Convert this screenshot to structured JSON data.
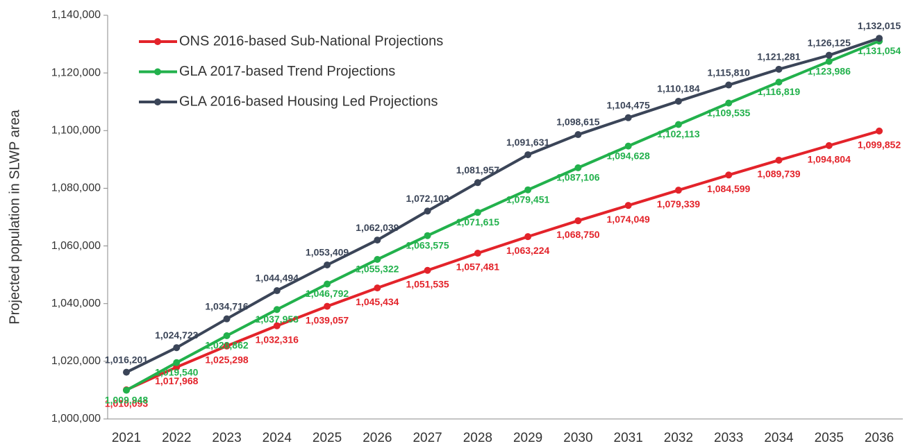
{
  "chart_data": {
    "type": "line",
    "y_label": "Projected population in SLWP area",
    "categories": [
      "2021",
      "2022",
      "2023",
      "2024",
      "2025",
      "2026",
      "2027",
      "2028",
      "2029",
      "2030",
      "2031",
      "2032",
      "2033",
      "2034",
      "2035",
      "2036"
    ],
    "series": [
      {
        "name": "ONS 2016-based Sub-National Projections",
        "color": "#e3232a",
        "values": [
          1010093,
          1017968,
          1025298,
          1032316,
          1039057,
          1045434,
          1051535,
          1057481,
          1063224,
          1068750,
          1074049,
          1079339,
          1084599,
          1089739,
          1094804,
          1099852
        ],
        "value_labels": [
          "1,010,093",
          "1,017,968",
          "1,025,298",
          "1,032,316",
          "1,039,057",
          "1,045,434",
          "1,051,535",
          "1,057,481",
          "1,063,224",
          "1,068,750",
          "1,074,049",
          "1,079,339",
          "1,084,599",
          "1,089,739",
          "1,094,804",
          "1,099,852"
        ]
      },
      {
        "name": "GLA 2017-based Trend Projections",
        "color": "#22b14c",
        "values": [
          1009948,
          1019540,
          1028862,
          1037953,
          1046792,
          1055322,
          1063575,
          1071615,
          1079451,
          1087106,
          1094628,
          1102113,
          1109535,
          1116819,
          1123986,
          1131054
        ],
        "value_labels": [
          "1,009,948",
          "1,019,540",
          "1,028,862",
          "1,037,953",
          "1,046,792",
          "1,055,322",
          "1,063,575",
          "1,071,615",
          "1,079,451",
          "1,087,106",
          "1,094,628",
          "1,102,113",
          "1,109,535",
          "1,116,819",
          "1,123,986",
          "1,131,054"
        ]
      },
      {
        "name": "GLA 2016-based Housing Led Projections",
        "color": "#3b4558",
        "values": [
          1016201,
          1024723,
          1034716,
          1044494,
          1053409,
          1062039,
          1072102,
          1081957,
          1091631,
          1098615,
          1104475,
          1110184,
          1115810,
          1121281,
          1126125,
          1132015
        ],
        "value_labels": [
          "1,016,201",
          "1,024,723",
          "1,034,716",
          "1,044,494",
          "1,053,409",
          "1,062,039",
          "1,072,102",
          "1,081,957",
          "1,091,631",
          "1,098,615",
          "1,104,475",
          "1,110,184",
          "1,115,810",
          "1,121,281",
          "1,126,125",
          "1,132,015"
        ]
      }
    ],
    "ylim": [
      1000000,
      1140000
    ],
    "yticks": [
      {
        "value": 1000000,
        "label": "1,000,000"
      },
      {
        "value": 1020000,
        "label": "1,020,000"
      },
      {
        "value": 1040000,
        "label": "1,040,000"
      },
      {
        "value": 1060000,
        "label": "1,060,000"
      },
      {
        "value": 1080000,
        "label": "1,080,000"
      },
      {
        "value": 1100000,
        "label": "1,100,000"
      },
      {
        "value": 1120000,
        "label": "1,120,000"
      },
      {
        "value": 1140000,
        "label": "1,140,000"
      }
    ],
    "legend": "top-left"
  }
}
